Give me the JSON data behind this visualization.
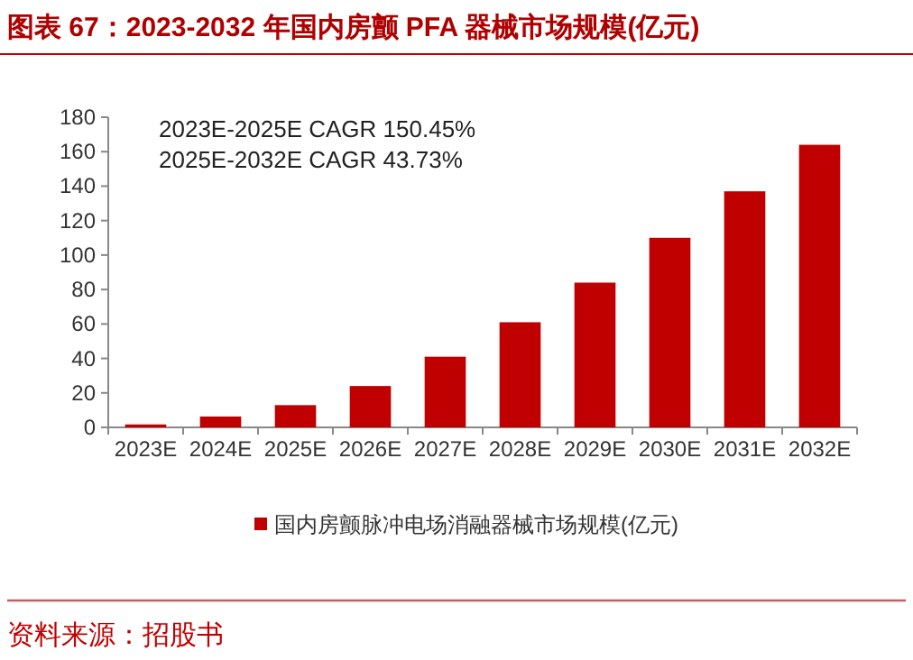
{
  "chart_data": {
    "type": "bar",
    "title": "图表 67：2023-2032 年国内房颤 PFA 器械市场规模(亿元)",
    "categories": [
      "2023E",
      "2024E",
      "2025E",
      "2026E",
      "2027E",
      "2028E",
      "2029E",
      "2030E",
      "2031E",
      "2032E"
    ],
    "series": [
      {
        "name": "国内房颤脉冲电场消融器械市场规模(亿元)",
        "color": "#c00000",
        "values": [
          1.7,
          6.3,
          12.9,
          24,
          41,
          61,
          84,
          110,
          137,
          164
        ]
      }
    ],
    "ylim": [
      0,
      180
    ],
    "yticks": [
      0,
      20,
      40,
      60,
      80,
      100,
      120,
      140,
      160,
      180
    ],
    "annotations": [
      "2023E-2025E  CAGR  150.45%",
      "2025E-2032E  CAGR  43.73%",
      "资料来源：招股书"
    ],
    "legend": "bottom",
    "grid": false
  }
}
